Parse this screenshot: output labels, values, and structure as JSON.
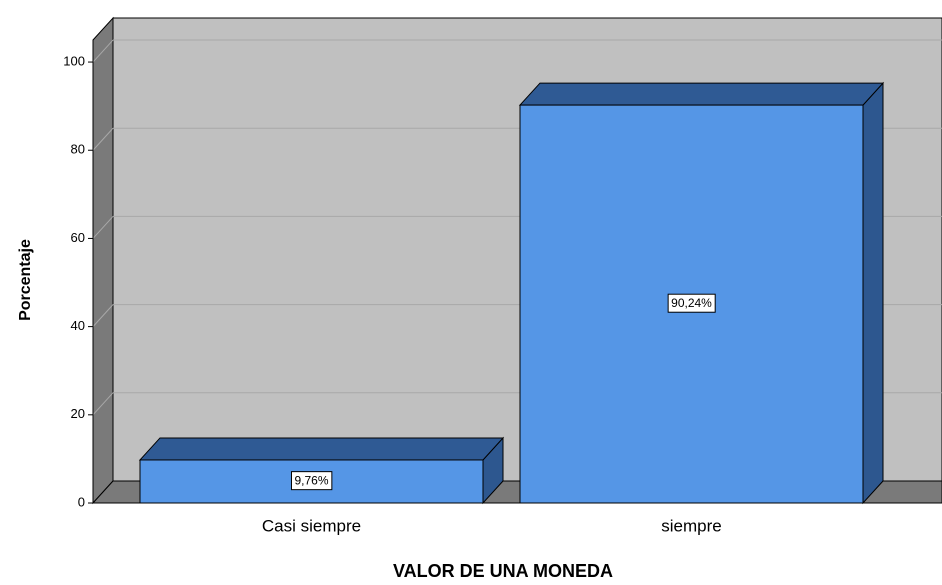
{
  "chart_data": {
    "type": "bar3d",
    "x_label": "VALOR DE UNA MONEDA",
    "y_label": "Porcentaje",
    "categories": [
      "Casi siempre",
      "siempre"
    ],
    "values": [
      9.76,
      90.24
    ],
    "value_labels": [
      "9,76%",
      "90,24%"
    ],
    "color": "#5596e6",
    "ylim": [
      0,
      105
    ],
    "yticks": [
      0,
      20,
      40,
      60,
      80,
      100
    ],
    "grid": true
  }
}
